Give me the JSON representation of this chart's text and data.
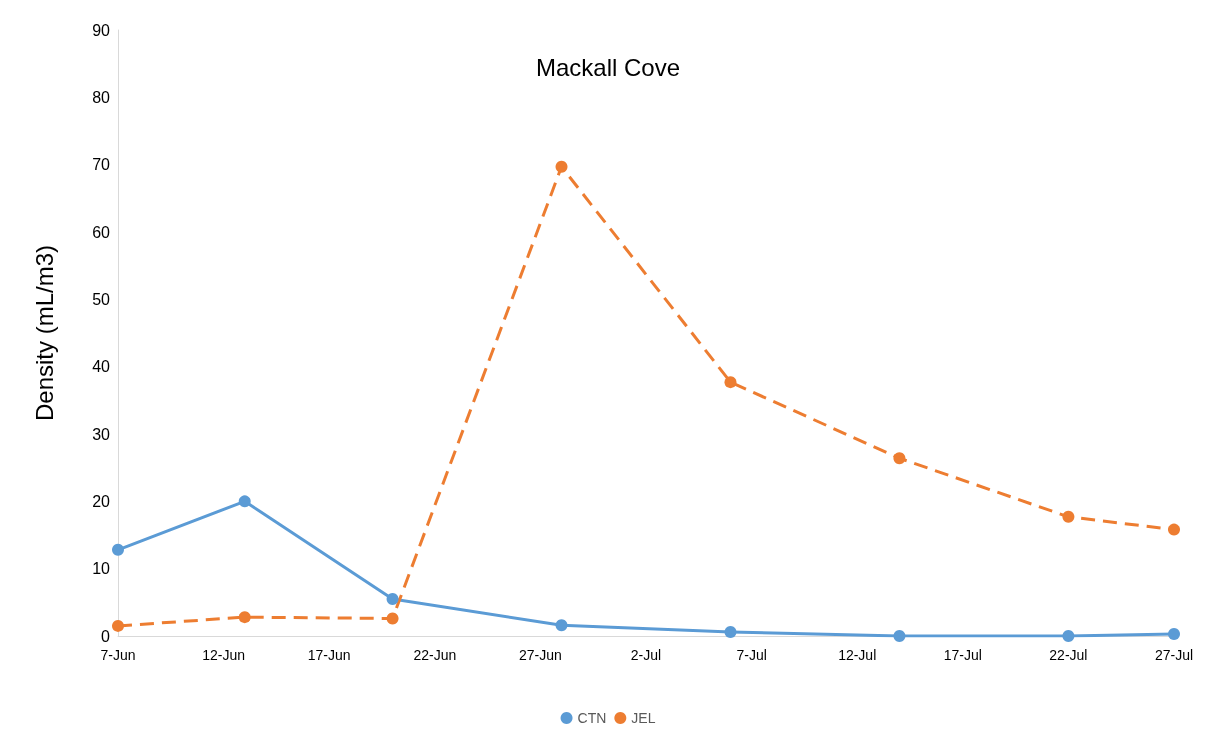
{
  "chart_data": {
    "type": "line",
    "title": "Mackall Cove",
    "ylabel": "Density (mL/m3)",
    "xlim": [
      "--06-07",
      "--07-27"
    ],
    "xticks": [
      {
        "value": "--06-07",
        "label": "7-Jun"
      },
      {
        "value": "--06-12",
        "label": "12-Jun"
      },
      {
        "value": "--06-17",
        "label": "17-Jun"
      },
      {
        "value": "--06-22",
        "label": "22-Jun"
      },
      {
        "value": "--06-27",
        "label": "27-Jun"
      },
      {
        "value": "--07-02",
        "label": "2-Jul"
      },
      {
        "value": "--07-07",
        "label": "7-Jul"
      },
      {
        "value": "--07-12",
        "label": "12-Jul"
      },
      {
        "value": "--07-17",
        "label": "17-Jul"
      },
      {
        "value": "--07-22",
        "label": "22-Jul"
      },
      {
        "value": "--07-27",
        "label": "27-Jul"
      }
    ],
    "ylim": [
      0,
      90
    ],
    "yticks": [
      0,
      10,
      20,
      30,
      40,
      50,
      60,
      70,
      80,
      90
    ],
    "x": [
      "--06-07",
      "--06-13",
      "--06-20",
      "--06-28",
      "--07-06",
      "--07-14",
      "--07-22",
      "--07-27"
    ],
    "series": [
      {
        "name": "CTN",
        "color": "#5b9bd5",
        "line_style": "solid",
        "values": [
          12.8,
          20.0,
          5.5,
          1.6,
          0.6,
          0,
          0,
          0.3
        ]
      },
      {
        "name": "JEL",
        "color": "#ed7d31",
        "line_style": "dashed",
        "values": [
          1.5,
          2.8,
          2.6,
          69.7,
          37.7,
          26.4,
          17.7,
          15.8
        ]
      }
    ],
    "grid": false,
    "legend": "bottom",
    "marker": "circle"
  }
}
